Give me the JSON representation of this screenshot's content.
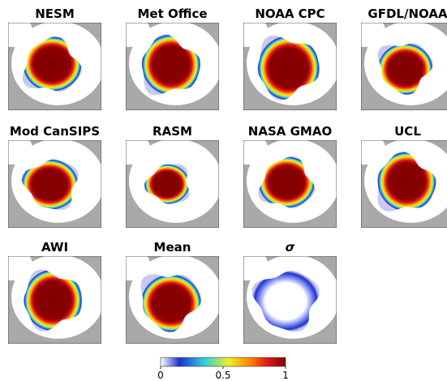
{
  "panels": [
    {
      "title": "NESM"
    },
    {
      "title": "Met Office"
    },
    {
      "title": "NOAA CPC"
    },
    {
      "title": "GFDL/NOAA"
    },
    {
      "title": "Mod CanSIPS"
    },
    {
      "title": "RASM"
    },
    {
      "title": "NASA GMAO"
    },
    {
      "title": "UCL"
    },
    {
      "title": "AWI"
    },
    {
      "title": "Mean"
    },
    {
      "title": "σ"
    }
  ],
  "colorbar": {
    "lim": [
      0,
      1
    ],
    "ticks": [
      0,
      0.5,
      1
    ]
  }
}
